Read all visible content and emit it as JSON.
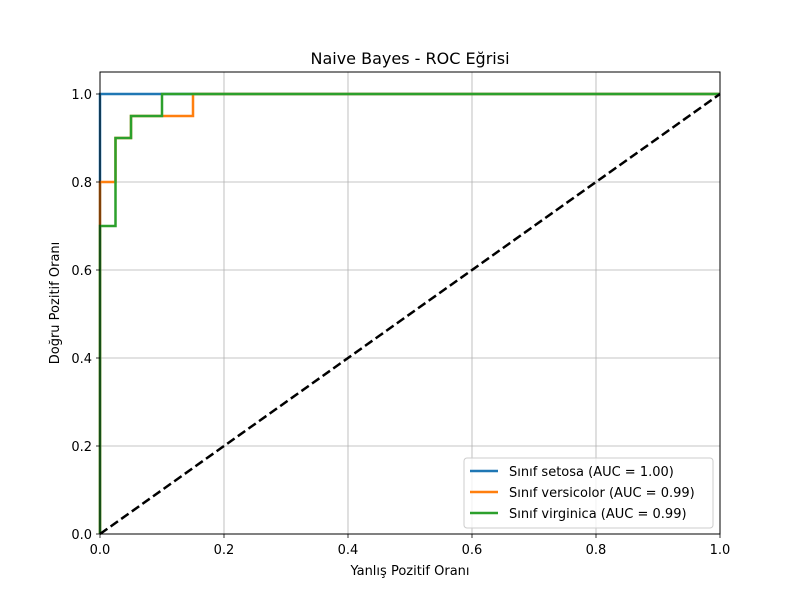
{
  "chart_data": {
    "type": "line",
    "title": "Naive Bayes - ROC Eğrisi",
    "xlabel": "Yanlış Pozitif Oranı",
    "ylabel": "Doğru Pozitif Oranı",
    "xlim": [
      0.0,
      1.0
    ],
    "ylim": [
      0.0,
      1.05
    ],
    "grid": true,
    "legend_position": "lower-right",
    "x_ticks": [
      "0.0",
      "0.2",
      "0.4",
      "0.6",
      "0.8",
      "1.0"
    ],
    "y_ticks": [
      "0.0",
      "0.2",
      "0.4",
      "0.6",
      "0.8",
      "1.0"
    ],
    "series": [
      {
        "name": "Sınıf setosa (AUC = 1.00)",
        "color": "#1f77b4",
        "x": [
          0.0,
          0.0,
          0.1,
          1.0
        ],
        "y": [
          0.0,
          1.0,
          1.0,
          1.0
        ]
      },
      {
        "name": "Sınıf versicolor (AUC = 0.99)",
        "color": "#ff7f0e",
        "x": [
          0.0,
          0.0,
          0.025,
          0.025,
          0.05,
          0.05,
          0.15,
          0.15,
          1.0
        ],
        "y": [
          0.0,
          0.8,
          0.8,
          0.9,
          0.9,
          0.95,
          0.95,
          1.0,
          1.0
        ]
      },
      {
        "name": "Sınıf virginica (AUC = 0.99)",
        "color": "#2ca02c",
        "x": [
          0.0,
          0.0,
          0.025,
          0.025,
          0.05,
          0.05,
          0.1,
          0.1,
          1.0
        ],
        "y": [
          0.0,
          0.7,
          0.7,
          0.9,
          0.9,
          0.95,
          0.95,
          1.0,
          1.0
        ]
      }
    ],
    "reference_line": {
      "x": [
        0.0,
        1.0
      ],
      "y": [
        0.0,
        1.0
      ],
      "color": "#000000",
      "style": "dashed"
    }
  }
}
